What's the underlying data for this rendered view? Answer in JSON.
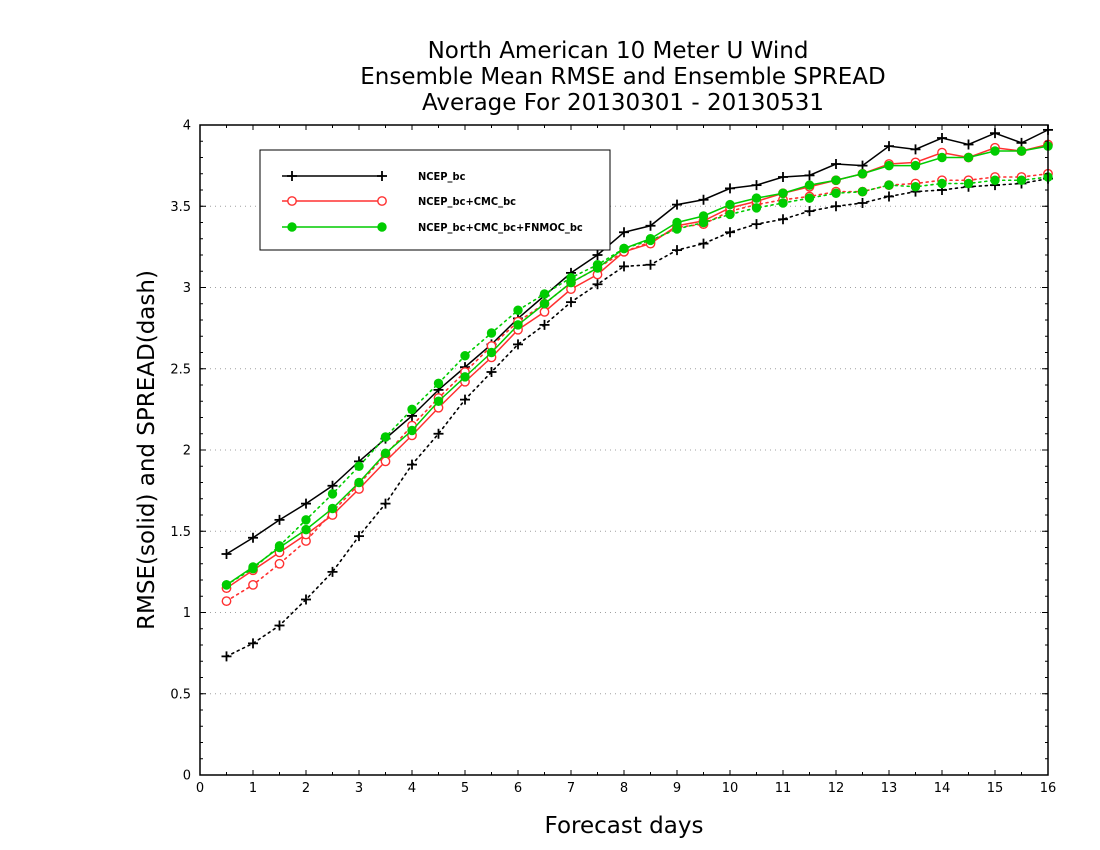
{
  "chart_data": {
    "type": "line",
    "title": [
      "North American 10 Meter U Wind",
      "Ensemble Mean RMSE and Ensemble SPREAD",
      "Average For 20130301 - 20130531"
    ],
    "xlabel": "Forecast days",
    "ylabel": "RMSE(solid) and SPREAD(dash)",
    "xlim": [
      0,
      16
    ],
    "ylim": [
      0,
      4
    ],
    "xticks": [
      0,
      1,
      2,
      3,
      4,
      5,
      6,
      7,
      8,
      9,
      10,
      11,
      12,
      13,
      14,
      15,
      16
    ],
    "yticks": [
      0,
      0.5,
      1,
      1.5,
      2,
      2.5,
      3,
      3.5,
      4
    ],
    "grid": "horizontal dotted",
    "legend_position": "top-left",
    "x": [
      0.5,
      1,
      1.5,
      2,
      2.5,
      3,
      3.5,
      4,
      4.5,
      5,
      5.5,
      6,
      6.5,
      7,
      7.5,
      8,
      8.5,
      9,
      9.5,
      10,
      10.5,
      11,
      11.5,
      12,
      12.5,
      13,
      13.5,
      14,
      14.5,
      15,
      15.5,
      16
    ],
    "series": [
      {
        "name": "NCEP_bc",
        "color": "#000000",
        "marker": "plus",
        "rmse": [
          1.36,
          1.46,
          1.57,
          1.67,
          1.78,
          1.93,
          2.07,
          2.21,
          2.37,
          2.51,
          2.65,
          2.81,
          2.95,
          3.09,
          3.2,
          3.34,
          3.38,
          3.51,
          3.54,
          3.61,
          3.63,
          3.68,
          3.69,
          3.76,
          3.75,
          3.87,
          3.85,
          3.92,
          3.88,
          3.95,
          3.89,
          3.97
        ],
        "spread": [
          0.73,
          0.81,
          0.92,
          1.08,
          1.25,
          1.47,
          1.67,
          1.91,
          2.1,
          2.31,
          2.48,
          2.65,
          2.77,
          2.91,
          3.02,
          3.13,
          3.14,
          3.23,
          3.27,
          3.34,
          3.39,
          3.42,
          3.47,
          3.5,
          3.52,
          3.56,
          3.59,
          3.6,
          3.62,
          3.63,
          3.64,
          3.67
        ]
      },
      {
        "name": "NCEP_bc+CMC_bc",
        "color": "#ff3030",
        "marker": "circle",
        "rmse": [
          1.15,
          1.26,
          1.37,
          1.48,
          1.6,
          1.76,
          1.93,
          2.09,
          2.26,
          2.42,
          2.57,
          2.74,
          2.85,
          2.99,
          3.08,
          3.22,
          3.27,
          3.38,
          3.41,
          3.49,
          3.53,
          3.58,
          3.62,
          3.66,
          3.7,
          3.76,
          3.77,
          3.83,
          3.8,
          3.86,
          3.84,
          3.88
        ],
        "spread": [
          1.07,
          1.17,
          1.3,
          1.44,
          1.62,
          1.79,
          1.97,
          2.15,
          2.32,
          2.48,
          2.64,
          2.79,
          2.9,
          3.03,
          3.12,
          3.22,
          3.28,
          3.37,
          3.39,
          3.47,
          3.51,
          3.54,
          3.56,
          3.59,
          3.59,
          3.63,
          3.64,
          3.66,
          3.66,
          3.68,
          3.68,
          3.7
        ]
      },
      {
        "name": "NCEP_bc+CMC_bc+FNMOC_bc",
        "color": "#00cc00",
        "marker": "filled-circle",
        "rmse": [
          1.17,
          1.28,
          1.4,
          1.51,
          1.64,
          1.8,
          1.98,
          2.12,
          2.3,
          2.45,
          2.6,
          2.77,
          2.9,
          3.03,
          3.12,
          3.24,
          3.3,
          3.4,
          3.44,
          3.51,
          3.55,
          3.58,
          3.63,
          3.66,
          3.7,
          3.75,
          3.75,
          3.8,
          3.8,
          3.84,
          3.84,
          3.87
        ],
        "spread": [
          1.17,
          1.27,
          1.41,
          1.57,
          1.73,
          1.9,
          2.08,
          2.25,
          2.41,
          2.58,
          2.72,
          2.86,
          2.96,
          3.06,
          3.14,
          3.24,
          3.29,
          3.36,
          3.4,
          3.45,
          3.49,
          3.52,
          3.55,
          3.58,
          3.59,
          3.63,
          3.62,
          3.64,
          3.64,
          3.66,
          3.66,
          3.68
        ]
      }
    ]
  }
}
